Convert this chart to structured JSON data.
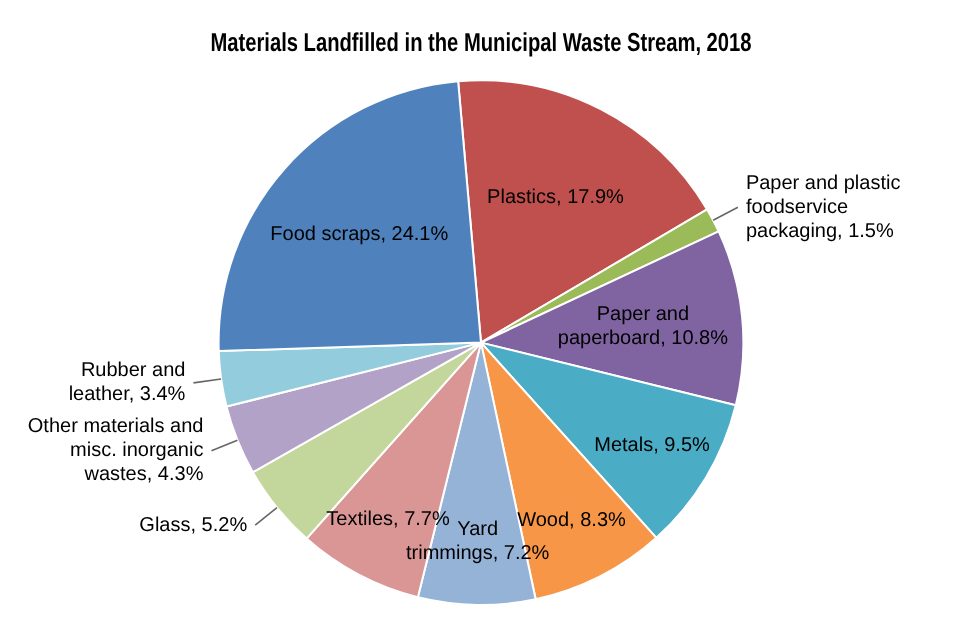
{
  "chart_data": {
    "type": "pie",
    "title": "Materials Landfilled in the Municipal Waste Stream, 2018",
    "categories": [
      "Plastics",
      "Paper and plastic foodservice packaging",
      "Paper and paperboard",
      "Metals",
      "Wood",
      "Yard trimmings",
      "Textiles",
      "Glass",
      "Other materials and misc. inorganic wastes",
      "Rubber and leather",
      "Food scraps"
    ],
    "values": [
      17.9,
      1.5,
      10.8,
      9.5,
      8.3,
      7.2,
      7.7,
      5.2,
      4.3,
      3.4,
      24.1
    ],
    "value_labels": [
      "17.9%",
      "1.5%",
      "10.8%",
      "9.5%",
      "8.3%",
      "7.2%",
      "7.7%",
      "5.2%",
      "4.3%",
      "3.4%",
      "24.1%"
    ],
    "colors": [
      "#c0504d",
      "#9bbb59",
      "#8064a2",
      "#4bacc6",
      "#f79646",
      "#95b3d7",
      "#d99694",
      "#c3d69b",
      "#b3a2c7",
      "#93cddd",
      "#4f81bd"
    ],
    "legend": false
  }
}
